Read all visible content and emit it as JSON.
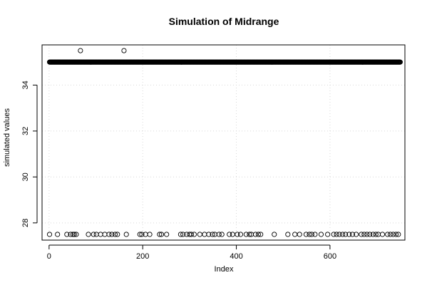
{
  "chart_data": {
    "type": "scatter",
    "title": "Simulation of Midrange",
    "xlabel": "Index",
    "ylabel": "simulated values",
    "xlim": [
      -15,
      760
    ],
    "ylim": [
      27.25,
      35.75
    ],
    "xticks": [
      0,
      200,
      400,
      600
    ],
    "yticks": [
      28,
      30,
      32,
      34
    ],
    "grid": true,
    "point_style": "open-circle",
    "levels": [
      {
        "name": "upper",
        "value": 35.5,
        "count": 2
      },
      {
        "name": "middle",
        "value": 35.0,
        "count": 670
      },
      {
        "name": "lower",
        "value": 27.5,
        "count": 78
      }
    ],
    "n_points": 750,
    "series": [
      {
        "x": [
          67,
          160
        ],
        "y": [
          35.5,
          35.5
        ]
      },
      {
        "x_range": [
          1,
          750
        ],
        "y": 35.0
      },
      {
        "x": [
          1,
          18,
          38,
          46,
          51,
          54,
          58,
          84,
          95,
          101,
          110,
          119,
          128,
          134,
          141,
          146,
          165,
          194,
          198,
          206,
          215,
          236,
          240,
          251,
          281,
          286,
          294,
          300,
          304,
          310,
          322,
          332,
          341,
          349,
          354,
          363,
          369,
          385,
          392,
          402,
          409,
          421,
          428,
          432,
          441,
          447,
          452,
          481,
          510,
          525,
          535,
          549,
          556,
          561,
          568,
          581,
          595,
          608,
          614,
          620,
          627,
          633,
          641,
          648,
          656,
          667,
          673,
          679,
          685,
          692,
          698,
          703,
          712,
          723,
          729,
          735,
          741,
          746
        ],
        "y": 27.5
      }
    ]
  }
}
